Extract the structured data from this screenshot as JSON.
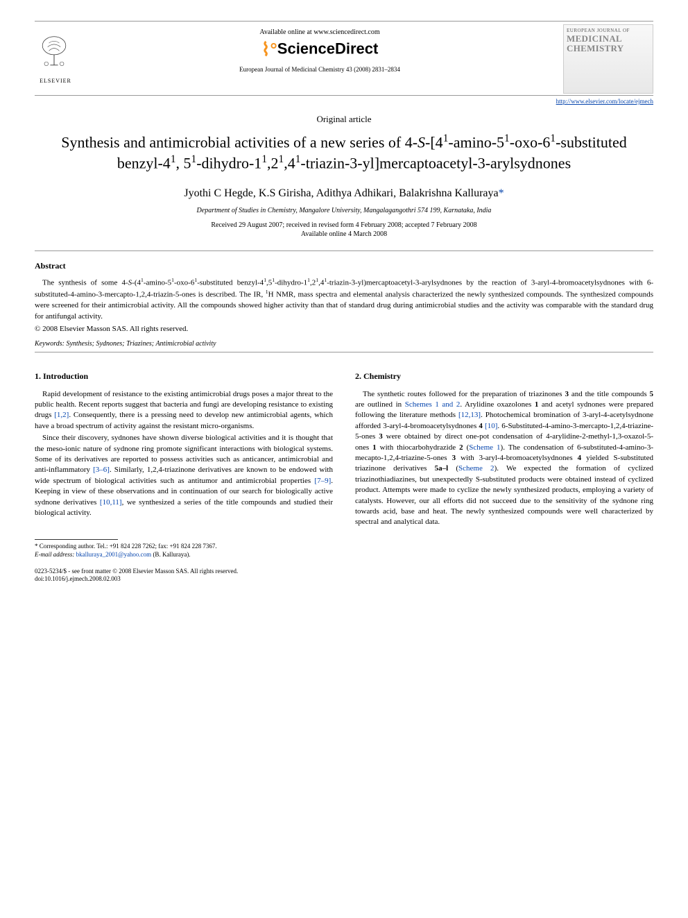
{
  "header": {
    "available_online": "Available online at www.sciencedirect.com",
    "sd_brand": "ScienceDirect",
    "citation": "European Journal of Medicinal Chemistry 43 (2008) 2831–2834",
    "journal_url": "http://www.elsevier.com/locate/ejmech",
    "elsevier_label": "ELSEVIER",
    "cover_line1": "EUROPEAN JOURNAL OF",
    "cover_line2": "MEDICINAL CHEMISTRY"
  },
  "article": {
    "type": "Original article",
    "title_html": "Synthesis and antimicrobial activities of a new series of 4-<i>S</i>-[4<sup>1</sup>-amino-5<sup>1</sup>-oxo-6<sup>1</sup>-substituted benzyl-4<sup>1</sup>, 5<sup>1</sup>-dihydro-1<sup>1</sup>,2<sup>1</sup>,4<sup>1</sup>-triazin-3-yl]mercaptoacetyl-3-arylsydnones",
    "authors": "Jyothi C Hegde, K.S Girisha, Adithya Adhikari, Balakrishna Kalluraya",
    "affiliation": "Department of Studies in Chemistry, Mangalore University, Mangalagangothri 574 199, Karnataka, India",
    "dates": "Received 29 August 2007; received in revised form 4 February 2008; accepted 7 February 2008",
    "online_date": "Available online 4 March 2008"
  },
  "abstract": {
    "heading": "Abstract",
    "body_html": "The synthesis of some 4-<i>S</i>-(4<sup>1</sup>-amino-5<sup>1</sup>-oxo-6<sup>1</sup>-substituted benzyl-4<sup>1</sup>,5<sup>1</sup>-dihydro-1<sup>1</sup>,2<sup>1</sup>,4<sup>1</sup>-triazin-3-yl)mercaptoacetyl-3-arylsydnones by the reaction of 3-aryl-4-bromoacetylsydnones with 6-substituted-4-amino-3-mercapto-1,2,4-triazin-5-ones is described. The IR, <sup>1</sup>H NMR, mass spectra and elemental analysis characterized the newly synthesized compounds. The synthesized compounds were screened for their antimicrobial activity. All the compounds showed higher activity than that of standard drug during antimicrobial studies and the activity was comparable with the standard drug for antifungal activity.",
    "copyright": "© 2008 Elsevier Masson SAS. All rights reserved.",
    "keywords_label": "Keywords:",
    "keywords": "Synthesis; Sydnones; Triazines; Antimicrobial activity"
  },
  "sections": {
    "intro_heading": "1. Introduction",
    "intro_p1_html": "Rapid development of resistance to the existing antimicrobial drugs poses a major threat to the public health. Recent reports suggest that bacteria and fungi are developing resistance to existing drugs <span class=\"ref-link\">[1,2]</span>. Consequently, there is a pressing need to develop new antimicrobial agents, which have a broad spectrum of activity against the resistant micro-organisms.",
    "intro_p2_html": "Since their discovery, sydnones have shown diverse biological activities and it is thought that the meso-ionic nature of sydnone ring promote significant interactions with biological systems. Some of its derivatives are reported to possess activities such as anticancer, antimicrobial and anti-inflammatory <span class=\"ref-link\">[3–6]</span>. Similarly, 1,2,4-triazinone derivatives are known to be endowed with wide spectrum of biological activities such as antitumor and antimicrobial properties <span class=\"ref-link\">[7–9]</span>. Keeping in view of these observations and in continuation of our search for biologically active sydnone derivatives <span class=\"ref-link\">[10,11]</span>, we synthesized a series of the title compounds and studied their biological activity.",
    "chem_heading": "2. Chemistry",
    "chem_p1_html": "The synthetic routes followed for the preparation of triazinones <b>3</b> and the title compounds <b>5</b> are outlined in <span class=\"ref-link\">Schemes 1 and 2</span>. Arylidine oxazolones <b>1</b> and acetyl sydnones were prepared following the literature methods <span class=\"ref-link\">[12,13]</span>. Photochemical bromination of 3-aryl-4-acetylsydnone afforded 3-aryl-4-bromoacetylsydnones <b>4</b> <span class=\"ref-link\">[10]</span>. 6-Substituted-4-amino-3-mercapto-1,2,4-triazine-5-ones <b>3</b> were obtained by direct one-pot condensation of 4-arylidine-2-methyl-1,3-oxazol-5-ones <b>1</b> with thiocarbohydrazide <b>2</b> (<span class=\"ref-link\">Scheme 1</span>). The condensation of 6-substituted-4-amino-3-mecapto-1,2,4-triazine-5-ones <b>3</b> with 3-aryl-4-bromoacetylsydnones <b>4</b> yielded S-substituted triazinone derivatives <b>5a–l</b> (<span class=\"ref-link\">Scheme 2</span>). We expected the formation of cyclized triazinothiadiazines, but unexpectedly S-substituted products were obtained instead of cyclized product. Attempts were made to cyclize the newly synthesized products, employing a variety of catalysts. However, our all efforts did not succeed due to the sensitivity of the sydnone ring towards acid, base and heat. The newly synthesized compounds were well characterized by spectral and analytical data."
  },
  "footnote": {
    "corr_html": "* Corresponding author. Tel.: +91 824 228 7262; fax: +91 824 228 7367.<br><i>E-mail address:</i> <span class=\"ref-link\">bkalluraya_2001@yahoo.com</span> (B. Kalluraya).",
    "issn_line": "0223-5234/$ - see front matter © 2008 Elsevier Masson SAS. All rights reserved.",
    "doi": "doi:10.1016/j.ejmech.2008.02.003"
  },
  "colors": {
    "link": "#0645ad",
    "text": "#000000",
    "rule": "#999999",
    "sd_swoosh": "#f7941e"
  }
}
